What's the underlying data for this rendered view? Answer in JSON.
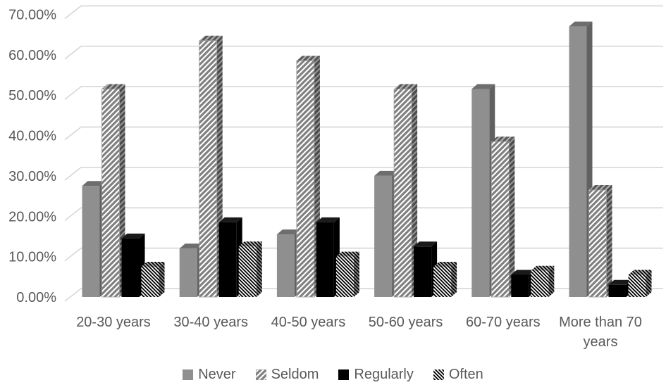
{
  "chart_data": {
    "type": "bar",
    "style": "3d-clustered-column",
    "title": "",
    "xlabel": "",
    "ylabel": "",
    "categories": [
      "20-30 years",
      "30-40 years",
      "40-50 years",
      "50-60 years",
      "60-70 years",
      "More than 70 years"
    ],
    "series": [
      {
        "name": "Never",
        "fill": "solid-gray",
        "values": [
          27.5,
          12.0,
          15.5,
          30.0,
          51.5,
          67.0
        ]
      },
      {
        "name": "Seldom",
        "fill": "stripe-gray",
        "values": [
          51.5,
          63.5,
          58.5,
          51.5,
          38.5,
          26.5
        ]
      },
      {
        "name": "Regularly",
        "fill": "solid-black",
        "values": [
          14.5,
          18.5,
          18.5,
          12.5,
          5.5,
          3.0
        ]
      },
      {
        "name": "Often",
        "fill": "stripe-black",
        "values": [
          7.5,
          12.5,
          10.0,
          7.5,
          6.5,
          5.5
        ]
      }
    ],
    "ylim": [
      0,
      70
    ],
    "ytick_step": 10,
    "ytick_labels": [
      "0.00%",
      "10.00%",
      "20.00%",
      "30.00%",
      "40.00%",
      "50.00%",
      "60.00%",
      "70.00%"
    ],
    "grid": true,
    "legend_position": "bottom",
    "colors": {
      "bar_gray": "#8f8f8f",
      "bar_gray_top": "#6e6e6e",
      "bar_gray_side": "#616161",
      "bar_black": "#000000",
      "stripe_gray": "#808080",
      "gridline": "#d9d9d9",
      "text": "#595959",
      "background": "#ffffff"
    }
  }
}
